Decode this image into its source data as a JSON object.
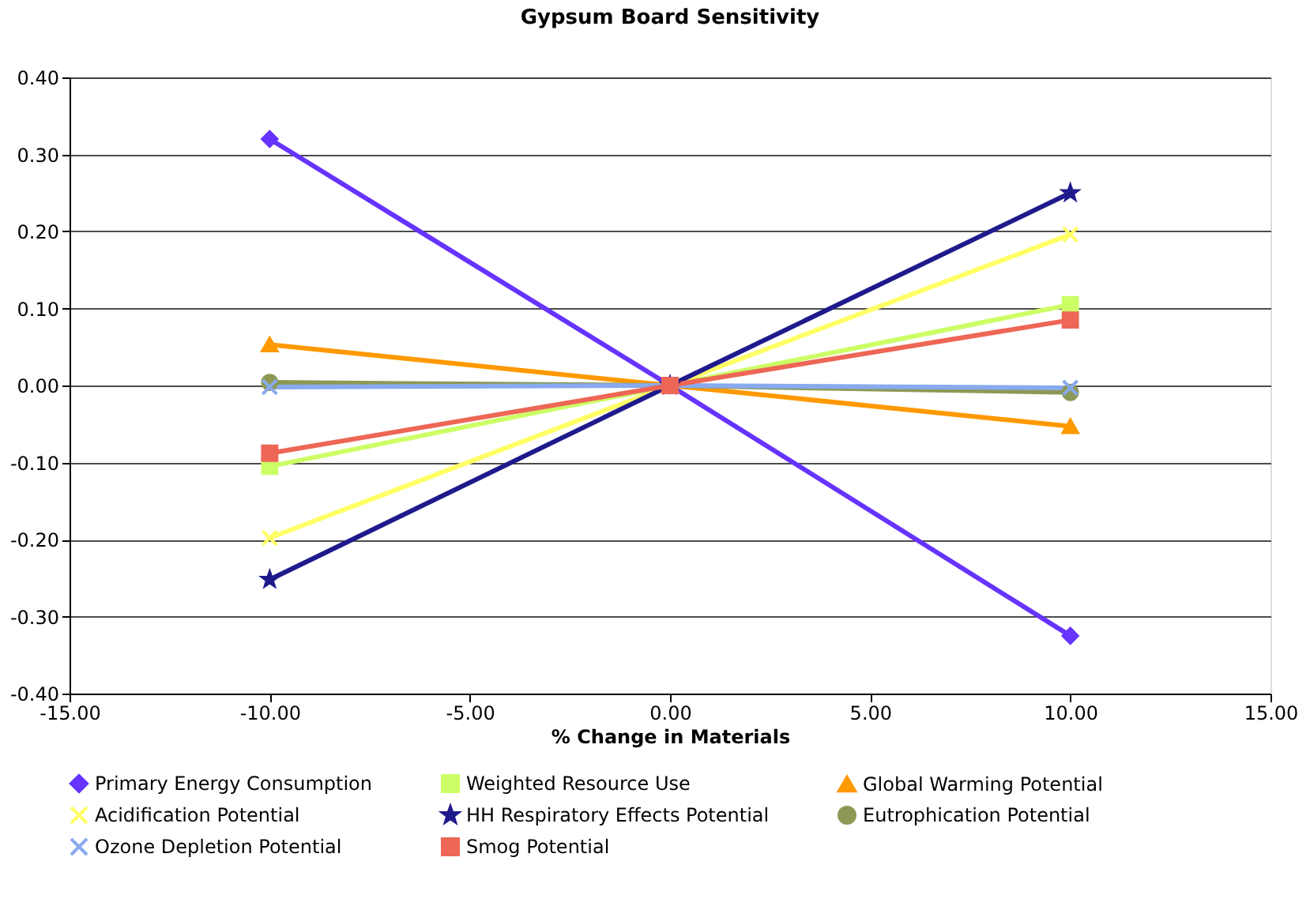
{
  "chart_data": {
    "type": "line",
    "title": "Gypsum Board Sensitivity",
    "xlabel": "% Change in Materials",
    "x": [
      -10,
      0,
      10
    ],
    "series": [
      {
        "name": "Primary Energy Consumption",
        "color": "#6633ff",
        "marker": "diamond",
        "values": [
          0.32,
          0,
          -0.325
        ]
      },
      {
        "name": "Weighted Resource Use",
        "color": "#ccff66",
        "marker": "square",
        "values": [
          -0.105,
          0,
          0.105
        ]
      },
      {
        "name": "Global Warming Potential",
        "color": "#ff9900",
        "marker": "triangle",
        "values": [
          0.053,
          0,
          -0.053
        ]
      },
      {
        "name": "Acidification Potential",
        "color": "#ffff66",
        "marker": "cross",
        "values": [
          -0.198,
          0,
          0.196
        ]
      },
      {
        "name": "HH Respiratory Effects Potential",
        "color": "#1f1a8c",
        "marker": "star",
        "values": [
          -0.252,
          0,
          0.25
        ]
      },
      {
        "name": "Eutrophication Potential",
        "color": "#8c9955",
        "marker": "circle",
        "values": [
          0.004,
          0,
          -0.009
        ]
      },
      {
        "name": "Ozone Depletion Potential",
        "color": "#88aaee",
        "marker": "cross",
        "values": [
          -0.002,
          0,
          -0.003
        ]
      },
      {
        "name": "Smog Potential",
        "color": "#ee6655",
        "marker": "square",
        "values": [
          -0.088,
          0,
          0.085
        ]
      }
    ],
    "xlim": [
      -15,
      15
    ],
    "xticks": [
      {
        "value": -15,
        "label": "-15.00"
      },
      {
        "value": -10,
        "label": "-10.00"
      },
      {
        "value": -5,
        "label": "-5.00"
      },
      {
        "value": 0,
        "label": "0.00"
      },
      {
        "value": 5,
        "label": "5.00"
      },
      {
        "value": 10,
        "label": "10.00"
      },
      {
        "value": 15,
        "label": "15.00"
      }
    ],
    "ylim": [
      -0.4,
      0.4
    ],
    "yticks": [
      {
        "value": -0.4,
        "label": "-0.40"
      },
      {
        "value": -0.3,
        "label": "-0.30"
      },
      {
        "value": -0.2,
        "label": "-0.20"
      },
      {
        "value": -0.1,
        "label": "-0.10"
      },
      {
        "value": 0,
        "label": "0.00"
      },
      {
        "value": 0.1,
        "label": "0.10"
      },
      {
        "value": 0.2,
        "label": "0.20"
      },
      {
        "value": 0.3,
        "label": "0.30"
      },
      {
        "value": 0.4,
        "label": "0.40"
      }
    ],
    "grid": "y",
    "legend": "bottom",
    "line_style": "solid"
  }
}
